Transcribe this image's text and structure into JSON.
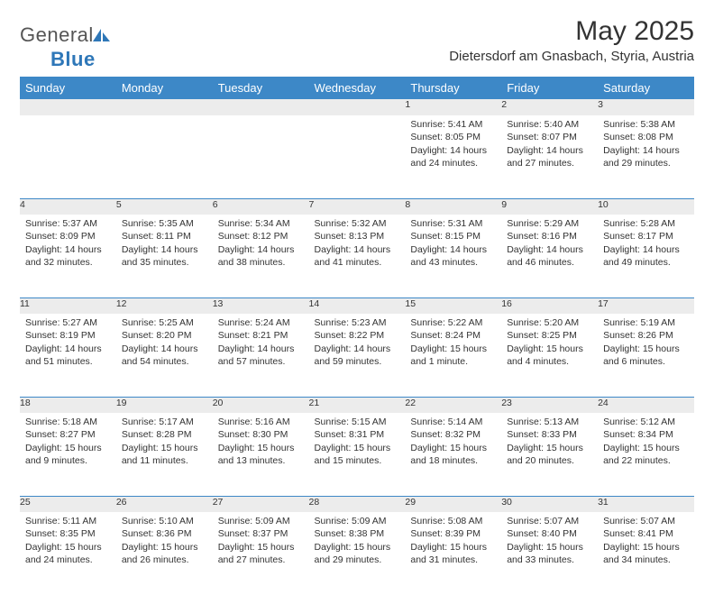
{
  "logo": {
    "text_gray": "General",
    "text_blue": "Blue"
  },
  "title": "May 2025",
  "location": "Dietersdorf am Gnasbach, Styria, Austria",
  "colors": {
    "header_bg": "#3d88c7",
    "header_text": "#ffffff",
    "daynum_bg": "#ececec",
    "daynum_border": "#3d88c7",
    "body_text": "#333333",
    "logo_gray": "#555555",
    "logo_blue": "#2e77b8",
    "page_bg": "#ffffff"
  },
  "day_headers": [
    "Sunday",
    "Monday",
    "Tuesday",
    "Wednesday",
    "Thursday",
    "Friday",
    "Saturday"
  ],
  "weeks": [
    {
      "nums": [
        "",
        "",
        "",
        "",
        "1",
        "2",
        "3"
      ],
      "cells": [
        null,
        null,
        null,
        null,
        {
          "sunrise": "5:41 AM",
          "sunset": "8:05 PM",
          "daylight": "14 hours and 24 minutes."
        },
        {
          "sunrise": "5:40 AM",
          "sunset": "8:07 PM",
          "daylight": "14 hours and 27 minutes."
        },
        {
          "sunrise": "5:38 AM",
          "sunset": "8:08 PM",
          "daylight": "14 hours and 29 minutes."
        }
      ]
    },
    {
      "nums": [
        "4",
        "5",
        "6",
        "7",
        "8",
        "9",
        "10"
      ],
      "cells": [
        {
          "sunrise": "5:37 AM",
          "sunset": "8:09 PM",
          "daylight": "14 hours and 32 minutes."
        },
        {
          "sunrise": "5:35 AM",
          "sunset": "8:11 PM",
          "daylight": "14 hours and 35 minutes."
        },
        {
          "sunrise": "5:34 AM",
          "sunset": "8:12 PM",
          "daylight": "14 hours and 38 minutes."
        },
        {
          "sunrise": "5:32 AM",
          "sunset": "8:13 PM",
          "daylight": "14 hours and 41 minutes."
        },
        {
          "sunrise": "5:31 AM",
          "sunset": "8:15 PM",
          "daylight": "14 hours and 43 minutes."
        },
        {
          "sunrise": "5:29 AM",
          "sunset": "8:16 PM",
          "daylight": "14 hours and 46 minutes."
        },
        {
          "sunrise": "5:28 AM",
          "sunset": "8:17 PM",
          "daylight": "14 hours and 49 minutes."
        }
      ]
    },
    {
      "nums": [
        "11",
        "12",
        "13",
        "14",
        "15",
        "16",
        "17"
      ],
      "cells": [
        {
          "sunrise": "5:27 AM",
          "sunset": "8:19 PM",
          "daylight": "14 hours and 51 minutes."
        },
        {
          "sunrise": "5:25 AM",
          "sunset": "8:20 PM",
          "daylight": "14 hours and 54 minutes."
        },
        {
          "sunrise": "5:24 AM",
          "sunset": "8:21 PM",
          "daylight": "14 hours and 57 minutes."
        },
        {
          "sunrise": "5:23 AM",
          "sunset": "8:22 PM",
          "daylight": "14 hours and 59 minutes."
        },
        {
          "sunrise": "5:22 AM",
          "sunset": "8:24 PM",
          "daylight": "15 hours and 1 minute."
        },
        {
          "sunrise": "5:20 AM",
          "sunset": "8:25 PM",
          "daylight": "15 hours and 4 minutes."
        },
        {
          "sunrise": "5:19 AM",
          "sunset": "8:26 PM",
          "daylight": "15 hours and 6 minutes."
        }
      ]
    },
    {
      "nums": [
        "18",
        "19",
        "20",
        "21",
        "22",
        "23",
        "24"
      ],
      "cells": [
        {
          "sunrise": "5:18 AM",
          "sunset": "8:27 PM",
          "daylight": "15 hours and 9 minutes."
        },
        {
          "sunrise": "5:17 AM",
          "sunset": "8:28 PM",
          "daylight": "15 hours and 11 minutes."
        },
        {
          "sunrise": "5:16 AM",
          "sunset": "8:30 PM",
          "daylight": "15 hours and 13 minutes."
        },
        {
          "sunrise": "5:15 AM",
          "sunset": "8:31 PM",
          "daylight": "15 hours and 15 minutes."
        },
        {
          "sunrise": "5:14 AM",
          "sunset": "8:32 PM",
          "daylight": "15 hours and 18 minutes."
        },
        {
          "sunrise": "5:13 AM",
          "sunset": "8:33 PM",
          "daylight": "15 hours and 20 minutes."
        },
        {
          "sunrise": "5:12 AM",
          "sunset": "8:34 PM",
          "daylight": "15 hours and 22 minutes."
        }
      ]
    },
    {
      "nums": [
        "25",
        "26",
        "27",
        "28",
        "29",
        "30",
        "31"
      ],
      "cells": [
        {
          "sunrise": "5:11 AM",
          "sunset": "8:35 PM",
          "daylight": "15 hours and 24 minutes."
        },
        {
          "sunrise": "5:10 AM",
          "sunset": "8:36 PM",
          "daylight": "15 hours and 26 minutes."
        },
        {
          "sunrise": "5:09 AM",
          "sunset": "8:37 PM",
          "daylight": "15 hours and 27 minutes."
        },
        {
          "sunrise": "5:09 AM",
          "sunset": "8:38 PM",
          "daylight": "15 hours and 29 minutes."
        },
        {
          "sunrise": "5:08 AM",
          "sunset": "8:39 PM",
          "daylight": "15 hours and 31 minutes."
        },
        {
          "sunrise": "5:07 AM",
          "sunset": "8:40 PM",
          "daylight": "15 hours and 33 minutes."
        },
        {
          "sunrise": "5:07 AM",
          "sunset": "8:41 PM",
          "daylight": "15 hours and 34 minutes."
        }
      ]
    }
  ],
  "labels": {
    "sunrise": "Sunrise:",
    "sunset": "Sunset:",
    "daylight": "Daylight:"
  }
}
